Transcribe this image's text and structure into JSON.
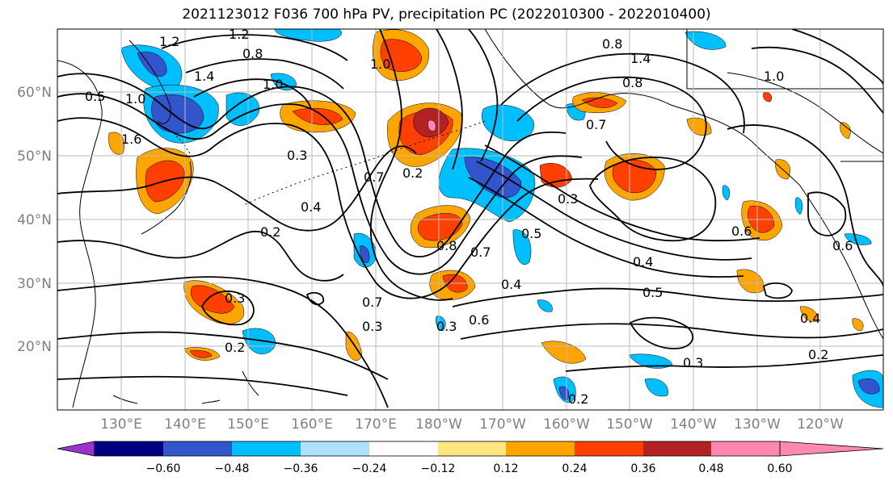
{
  "title": "2021123012 F036 700 hPa PV, precipitation PC (2022010300 - 2022010400)",
  "lat_labels": [
    "60°N",
    "50°N",
    "40°N",
    "30°N",
    "20°N"
  ],
  "lon_labels": [
    "130°E",
    "140°E",
    "150°E",
    "160°E",
    "170°E",
    "180°W",
    "170°W",
    "160°W",
    "150°W",
    "140°W",
    "130°W",
    "120°W"
  ],
  "contour_labels": [
    "1.2",
    "1.2",
    "0.8",
    "1.4",
    "1.0",
    "1.6",
    "0.5",
    "1.0",
    "0.3",
    "0.2",
    "0.4",
    "0.7",
    "0.2",
    "1.0",
    "0.8",
    "0.7",
    "0.7",
    "0.3",
    "0.6",
    "0.4",
    "0.5",
    "0.3",
    "0.3",
    "0.2",
    "0.3",
    "0.4",
    "0.2",
    "0.6",
    "0.8",
    "0.7",
    "0.5",
    "0.4",
    "1.0",
    "1.4",
    "0.8",
    "0.6",
    "0.2",
    "0.3"
  ],
  "colorbar": {
    "ticks": [
      "−0.60",
      "−0.48",
      "−0.36",
      "−0.24",
      "−0.12",
      "0.12",
      "0.24",
      "0.36",
      "0.48",
      "0.60"
    ],
    "colors": [
      "#9933cc",
      "#000080",
      "#3355cc",
      "#00bfff",
      "#b0e0ff",
      "#ffffff",
      "#ffe680",
      "#ffa500",
      "#ff4000",
      "#b22222",
      "#ff88b0"
    ]
  }
}
